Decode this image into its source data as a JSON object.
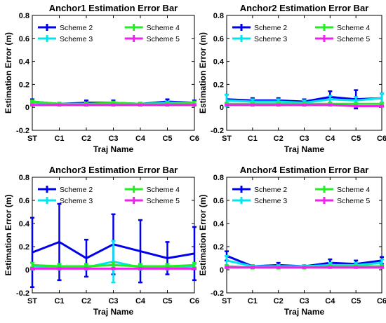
{
  "chart_data": [
    {
      "type": "line",
      "title": "Anchor1 Estimation Error Bar",
      "xlabel": "Traj Name",
      "ylabel": "Estimation Error (m)",
      "categories": [
        "ST",
        "C1",
        "C2",
        "C3",
        "C4",
        "C5",
        "C6"
      ],
      "ylim": [
        -0.2,
        0.8
      ],
      "yticks": [
        "-0.2",
        "0",
        "0.2",
        "0.4",
        "0.6",
        "0.8"
      ],
      "legend_position": "top",
      "series": [
        {
          "name": "Scheme 2",
          "color": "#0000ee",
          "values": [
            0.05,
            0.03,
            0.04,
            0.04,
            0.03,
            0.05,
            0.04
          ],
          "err": [
            0.02,
            0.01,
            0.02,
            0.02,
            0.01,
            0.02,
            0.02
          ]
        },
        {
          "name": "Scheme 3",
          "color": "#00e5ee",
          "values": [
            0.04,
            0.03,
            0.03,
            0.03,
            0.03,
            0.04,
            0.04
          ],
          "err": [
            0.01,
            0.01,
            0.01,
            0.01,
            0.01,
            0.01,
            0.01
          ]
        },
        {
          "name": "Scheme 4",
          "color": "#22ee22",
          "values": [
            0.05,
            0.03,
            0.03,
            0.04,
            0.03,
            0.03,
            0.04
          ],
          "err": [
            0.01,
            0.01,
            0.01,
            0.01,
            0.01,
            0.01,
            0.01
          ]
        },
        {
          "name": "Scheme 5",
          "color": "#ee22ee",
          "values": [
            0.02,
            0.02,
            0.02,
            0.02,
            0.02,
            0.02,
            0.02
          ],
          "err": [
            0.005,
            0.005,
            0.005,
            0.005,
            0.005,
            0.005,
            0.005
          ]
        }
      ]
    },
    {
      "type": "line",
      "title": "Anchor2 Estimation Error Bar",
      "xlabel": "Traj Name",
      "ylabel": "Estimation Error (m)",
      "categories": [
        "ST",
        "C1",
        "C2",
        "C3",
        "C4",
        "C5",
        "C6"
      ],
      "ylim": [
        -0.2,
        0.8
      ],
      "yticks": [
        "-0.2",
        "0",
        "0.2",
        "0.4",
        "0.6",
        "0.8"
      ],
      "legend_position": "top",
      "series": [
        {
          "name": "Scheme 2",
          "color": "#0000ee",
          "values": [
            0.07,
            0.06,
            0.06,
            0.05,
            0.09,
            0.07,
            0.08
          ],
          "err": [
            0.04,
            0.02,
            0.02,
            0.02,
            0.05,
            0.08,
            0.04
          ]
        },
        {
          "name": "Scheme 3",
          "color": "#00e5ee",
          "values": [
            0.06,
            0.05,
            0.05,
            0.04,
            0.07,
            0.06,
            0.08
          ],
          "err": [
            0.05,
            0.02,
            0.02,
            0.02,
            0.03,
            0.03,
            0.04
          ]
        },
        {
          "name": "Scheme 4",
          "color": "#22ee22",
          "values": [
            0.03,
            0.03,
            0.03,
            0.03,
            0.03,
            0.03,
            0.03
          ],
          "err": [
            0.01,
            0.01,
            0.01,
            0.01,
            0.01,
            0.01,
            0.01
          ]
        },
        {
          "name": "Scheme 5",
          "color": "#ee22ee",
          "values": [
            0.02,
            0.02,
            0.02,
            0.02,
            0.02,
            0.01,
            0.01
          ],
          "err": [
            0.005,
            0.005,
            0.005,
            0.005,
            0.005,
            0.005,
            0.005
          ]
        }
      ]
    },
    {
      "type": "line",
      "title": "Anchor3 Estimation Error Bar",
      "xlabel": "Traj Name",
      "ylabel": "Estimation Error (m)",
      "categories": [
        "ST",
        "C1",
        "C2",
        "C3",
        "C4",
        "C5",
        "C6"
      ],
      "ylim": [
        -0.2,
        0.8
      ],
      "yticks": [
        "-0.2",
        "0",
        "0.2",
        "0.4",
        "0.6",
        "0.8"
      ],
      "legend_position": "top",
      "series": [
        {
          "name": "Scheme 2",
          "color": "#0000ee",
          "values": [
            0.15,
            0.24,
            0.1,
            0.22,
            0.16,
            0.1,
            0.14
          ],
          "err": [
            0.3,
            0.33,
            0.16,
            0.26,
            0.27,
            0.14,
            0.23
          ]
        },
        {
          "name": "Scheme 3",
          "color": "#00e5ee",
          "values": [
            0.03,
            0.02,
            0.02,
            0.07,
            0.02,
            0.02,
            0.03
          ],
          "err": [
            0.03,
            0.02,
            0.02,
            0.18,
            0.02,
            0.02,
            0.02
          ]
        },
        {
          "name": "Scheme 4",
          "color": "#22ee22",
          "values": [
            0.04,
            0.03,
            0.03,
            0.04,
            0.03,
            0.03,
            0.04
          ],
          "err": [
            0.02,
            0.02,
            0.02,
            0.02,
            0.02,
            0.02,
            0.02
          ]
        },
        {
          "name": "Scheme 5",
          "color": "#ee22ee",
          "values": [
            0.01,
            0.01,
            0.01,
            0.01,
            0.01,
            0.01,
            0.01
          ],
          "err": [
            0.005,
            0.005,
            0.005,
            0.005,
            0.005,
            0.005,
            0.005
          ]
        }
      ]
    },
    {
      "type": "line",
      "title": "Anchor4 Estimation Error Bar",
      "xlabel": "Traj Name",
      "ylabel": "Estimation Error (m)",
      "categories": [
        "ST",
        "C1",
        "C2",
        "C3",
        "C4",
        "C5",
        "C6"
      ],
      "ylim": [
        -0.2,
        0.8
      ],
      "yticks": [
        "-0.2",
        "0",
        "0.2",
        "0.4",
        "0.6",
        "0.8"
      ],
      "legend_position": "top",
      "series": [
        {
          "name": "Scheme 2",
          "color": "#0000ee",
          "values": [
            0.12,
            0.03,
            0.04,
            0.03,
            0.06,
            0.05,
            0.08
          ],
          "err": [
            0.04,
            0.01,
            0.02,
            0.01,
            0.03,
            0.03,
            0.03
          ]
        },
        {
          "name": "Scheme 3",
          "color": "#00e5ee",
          "values": [
            0.08,
            0.03,
            0.03,
            0.03,
            0.04,
            0.04,
            0.06
          ],
          "err": [
            0.04,
            0.01,
            0.01,
            0.01,
            0.02,
            0.02,
            0.03
          ]
        },
        {
          "name": "Scheme 4",
          "color": "#22ee22",
          "values": [
            0.03,
            0.02,
            0.02,
            0.02,
            0.03,
            0.03,
            0.03
          ],
          "err": [
            0.01,
            0.01,
            0.01,
            0.01,
            0.01,
            0.01,
            0.01
          ]
        },
        {
          "name": "Scheme 5",
          "color": "#ee22ee",
          "values": [
            0.02,
            0.02,
            0.02,
            0.02,
            0.02,
            0.02,
            0.02
          ],
          "err": [
            0.005,
            0.005,
            0.005,
            0.005,
            0.005,
            0.005,
            0.005
          ]
        }
      ]
    }
  ]
}
